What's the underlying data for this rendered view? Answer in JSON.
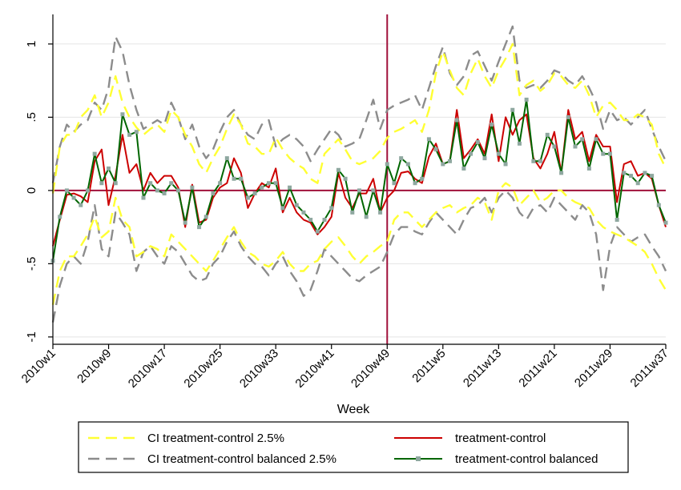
{
  "colors": {
    "ci": "#ffff33",
    "ci_balanced": "#8c8c8c",
    "diff": "#cc0000",
    "diff_balanced": "#006600",
    "marker": "#8fa8a0",
    "refline": "#a0103a",
    "grid": "#e4e4e4"
  },
  "chart_data": {
    "type": "line",
    "title": "",
    "xlabel": "Week",
    "ylabel": "",
    "x_tick_labels": [
      "2010w1",
      "2010w9",
      "2010w17",
      "2010w25",
      "2010w33",
      "2010w41",
      "2010w49",
      "2011w5",
      "2011w13",
      "2011w21",
      "2011w29",
      "2011w37"
    ],
    "x_tick_index": [
      0,
      8,
      16,
      24,
      32,
      40,
      48,
      56,
      64,
      72,
      80,
      88
    ],
    "y_tick_labels": [
      "-1",
      "-.5",
      "0",
      ".5",
      "1"
    ],
    "y_ticks": [
      -1,
      -0.5,
      0,
      0.5,
      1
    ],
    "ylim": [
      -1.05,
      1.18
    ],
    "reference_lines": {
      "horizontal_y": 0,
      "vertical_x": "2010w49"
    },
    "grid": true,
    "legend_placement": "bottom",
    "series": [
      {
        "name": "CI treatment-control 2.5%",
        "style": "dashed",
        "color_key": "ci",
        "upper": [
          -0.02,
          0.3,
          0.38,
          0.38,
          0.5,
          0.55,
          0.65,
          0.5,
          0.6,
          0.78,
          0.6,
          0.5,
          0.43,
          0.38,
          0.42,
          0.45,
          0.4,
          0.55,
          0.5,
          0.38,
          0.3,
          0.18,
          0.12,
          0.22,
          0.3,
          0.42,
          0.52,
          0.45,
          0.32,
          0.3,
          0.25,
          0.25,
          0.36,
          0.28,
          0.22,
          0.18,
          0.15,
          0.08,
          0.05,
          0.25,
          0.3,
          0.35,
          0.28,
          0.2,
          0.18,
          0.2,
          0.22,
          0.27,
          0.36,
          0.4,
          0.42,
          0.45,
          0.48,
          0.4,
          0.55,
          0.8,
          0.95,
          0.82,
          0.7,
          0.65,
          0.8,
          0.9,
          0.78,
          0.7,
          0.82,
          0.9,
          1.0,
          0.65,
          0.72,
          0.75,
          0.68,
          0.72,
          0.8,
          0.78,
          0.72,
          0.7,
          0.75,
          0.65,
          0.5,
          0.58,
          0.6,
          0.55,
          0.48,
          0.48,
          0.52,
          0.5,
          0.45,
          0.25,
          0.15
        ],
        "lower": [
          -0.78,
          -0.55,
          -0.45,
          -0.45,
          -0.38,
          -0.3,
          -0.18,
          -0.32,
          -0.28,
          -0.05,
          -0.2,
          -0.25,
          -0.45,
          -0.42,
          -0.38,
          -0.4,
          -0.45,
          -0.3,
          -0.35,
          -0.4,
          -0.45,
          -0.5,
          -0.55,
          -0.48,
          -0.4,
          -0.32,
          -0.25,
          -0.35,
          -0.42,
          -0.45,
          -0.5,
          -0.52,
          -0.48,
          -0.42,
          -0.5,
          -0.55,
          -0.55,
          -0.5,
          -0.48,
          -0.4,
          -0.35,
          -0.32,
          -0.38,
          -0.45,
          -0.5,
          -0.45,
          -0.42,
          -0.38,
          -0.35,
          -0.2,
          -0.15,
          -0.15,
          -0.2,
          -0.25,
          -0.2,
          -0.15,
          -0.12,
          -0.1,
          -0.15,
          -0.12,
          -0.1,
          -0.05,
          -0.08,
          -0.2,
          0.0,
          0.05,
          0.02,
          -0.1,
          -0.05,
          0.0,
          -0.08,
          -0.05,
          0.0,
          0.0,
          -0.05,
          -0.08,
          -0.1,
          -0.12,
          -0.2,
          -0.25,
          -0.28,
          -0.3,
          -0.32,
          -0.35,
          -0.38,
          -0.42,
          -0.5,
          -0.6,
          -0.68
        ]
      },
      {
        "name": "CI treatment-control balanced 2.5%",
        "style": "dashed",
        "color_key": "ci_balanced",
        "upper": [
          0.05,
          0.3,
          0.45,
          0.4,
          0.45,
          0.48,
          0.6,
          0.55,
          0.7,
          1.05,
          0.95,
          0.72,
          0.55,
          0.42,
          0.45,
          0.48,
          0.45,
          0.6,
          0.5,
          0.35,
          0.45,
          0.3,
          0.22,
          0.28,
          0.4,
          0.5,
          0.55,
          0.45,
          0.38,
          0.35,
          0.45,
          0.48,
          0.3,
          0.35,
          0.38,
          0.35,
          0.3,
          0.2,
          0.28,
          0.35,
          0.42,
          0.38,
          0.3,
          0.32,
          0.35,
          0.48,
          0.62,
          0.42,
          0.55,
          0.58,
          0.6,
          0.62,
          0.65,
          0.55,
          0.7,
          0.85,
          0.98,
          0.8,
          0.72,
          0.78,
          0.92,
          0.95,
          0.85,
          0.75,
          0.88,
          1.0,
          1.12,
          0.75,
          0.7,
          0.72,
          0.7,
          0.75,
          0.82,
          0.8,
          0.75,
          0.72,
          0.78,
          0.7,
          0.6,
          0.42,
          0.55,
          0.48,
          0.5,
          0.45,
          0.5,
          0.55,
          0.42,
          0.3,
          0.2
        ],
        "lower": [
          -0.9,
          -0.65,
          -0.5,
          -0.45,
          -0.5,
          -0.35,
          -0.1,
          -0.4,
          -0.45,
          -0.15,
          -0.22,
          -0.3,
          -0.55,
          -0.42,
          -0.38,
          -0.45,
          -0.5,
          -0.38,
          -0.42,
          -0.5,
          -0.58,
          -0.62,
          -0.6,
          -0.5,
          -0.45,
          -0.35,
          -0.28,
          -0.38,
          -0.45,
          -0.5,
          -0.52,
          -0.58,
          -0.5,
          -0.45,
          -0.55,
          -0.62,
          -0.72,
          -0.68,
          -0.55,
          -0.4,
          -0.45,
          -0.5,
          -0.55,
          -0.6,
          -0.62,
          -0.58,
          -0.55,
          -0.52,
          -0.42,
          -0.3,
          -0.25,
          -0.25,
          -0.28,
          -0.3,
          -0.22,
          -0.15,
          -0.2,
          -0.25,
          -0.3,
          -0.2,
          -0.12,
          -0.1,
          -0.05,
          -0.15,
          -0.05,
          0.0,
          -0.05,
          -0.15,
          -0.2,
          -0.12,
          -0.1,
          -0.15,
          -0.05,
          -0.1,
          -0.15,
          -0.2,
          -0.1,
          -0.15,
          -0.3,
          -0.68,
          -0.38,
          -0.25,
          -0.3,
          -0.35,
          -0.32,
          -0.3,
          -0.38,
          -0.45,
          -0.55
        ]
      },
      {
        "name": "treatment-control",
        "style": "solid",
        "color_key": "diff",
        "values": [
          -0.38,
          -0.2,
          -0.03,
          -0.02,
          -0.04,
          -0.08,
          0.2,
          0.28,
          -0.1,
          0.1,
          0.38,
          0.12,
          0.18,
          0.0,
          0.12,
          0.05,
          0.1,
          0.1,
          0.02,
          -0.25,
          0.04,
          -0.22,
          -0.2,
          -0.05,
          0.02,
          0.05,
          0.22,
          0.12,
          -0.12,
          -0.02,
          0.05,
          0.02,
          0.15,
          -0.15,
          -0.05,
          -0.15,
          -0.2,
          -0.22,
          -0.3,
          -0.25,
          -0.18,
          0.12,
          -0.05,
          -0.12,
          -0.02,
          -0.02,
          0.08,
          -0.15,
          -0.05,
          0.0,
          0.12,
          0.13,
          0.08,
          0.05,
          0.23,
          0.32,
          0.18,
          0.2,
          0.55,
          0.22,
          0.28,
          0.35,
          0.25,
          0.52,
          0.2,
          0.5,
          0.38,
          0.48,
          0.52,
          0.22,
          0.15,
          0.25,
          0.4,
          0.12,
          0.55,
          0.35,
          0.4,
          0.2,
          0.38,
          0.3,
          0.3,
          -0.08,
          0.18,
          0.2,
          0.1,
          0.12,
          0.08,
          -0.1,
          -0.25
        ]
      },
      {
        "name": "treatment-control balanced",
        "style": "solid-marker",
        "color_key": "diff_balanced",
        "values": [
          -0.48,
          -0.18,
          0.0,
          -0.05,
          -0.1,
          0.0,
          0.25,
          0.05,
          0.15,
          0.05,
          0.52,
          0.38,
          0.4,
          -0.05,
          0.05,
          0.0,
          -0.02,
          0.05,
          0.0,
          -0.22,
          0.02,
          -0.25,
          -0.18,
          -0.02,
          0.05,
          0.22,
          0.08,
          0.08,
          -0.05,
          -0.02,
          0.02,
          0.05,
          0.05,
          -0.12,
          0.02,
          -0.1,
          -0.15,
          -0.2,
          -0.28,
          -0.2,
          -0.12,
          0.14,
          0.08,
          -0.15,
          0.0,
          -0.18,
          0.0,
          -0.15,
          0.18,
          0.05,
          0.22,
          0.18,
          0.05,
          0.08,
          0.35,
          0.28,
          0.18,
          0.2,
          0.48,
          0.15,
          0.25,
          0.33,
          0.22,
          0.45,
          0.25,
          0.18,
          0.55,
          0.32,
          0.62,
          0.2,
          0.2,
          0.38,
          0.3,
          0.12,
          0.5,
          0.3,
          0.35,
          0.15,
          0.35,
          0.25,
          0.25,
          -0.2,
          0.12,
          0.1,
          0.05,
          0.12,
          0.1,
          -0.1,
          -0.22
        ]
      }
    ]
  }
}
